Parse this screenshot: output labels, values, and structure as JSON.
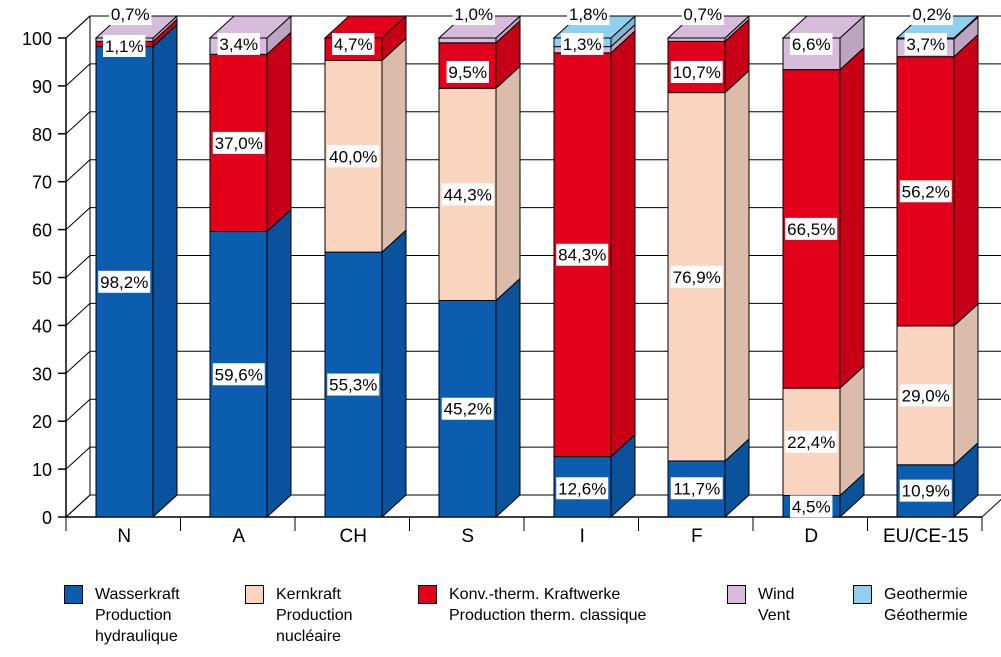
{
  "chart_data": {
    "type": "bar",
    "stacked": true,
    "categories": [
      "N",
      "A",
      "CH",
      "S",
      "I",
      "F",
      "D",
      "EU/CE-15"
    ],
    "ylim": [
      0,
      100
    ],
    "yticks": [
      0,
      10,
      20,
      30,
      40,
      50,
      60,
      70,
      80,
      90,
      100
    ],
    "series": [
      {
        "key": "hydro",
        "name": "Wasserkraft / Production hydraulique",
        "color": "#0b5db0",
        "values": [
          98.2,
          59.6,
          55.3,
          45.2,
          12.6,
          11.7,
          4.5,
          10.9
        ],
        "labels": [
          "98,2%",
          "59,6%",
          "55,3%",
          "45,2%",
          "12,6%",
          "11,7%",
          "4,5%",
          "10,9%"
        ]
      },
      {
        "key": "nuclear",
        "name": "Kernkraft / Production nucléaire",
        "color": "#f9d5c0",
        "values": [
          0,
          0,
          40.0,
          44.3,
          0,
          76.9,
          22.4,
          29.0
        ],
        "labels": [
          "",
          "",
          "40,0%",
          "44,3%",
          "",
          "76,9%",
          "22,4%",
          "29,0%"
        ]
      },
      {
        "key": "thermal",
        "name": "Konv.-therm. Kraftwerke / Production therm. classique",
        "color": "#e2001a",
        "values": [
          1.1,
          37.0,
          4.7,
          9.5,
          84.3,
          10.7,
          66.5,
          56.2
        ],
        "labels": [
          "1,1%",
          "37,0%",
          "4,7%",
          "9,5%",
          "84,3%",
          "10,7%",
          "66,5%",
          "56,2%"
        ]
      },
      {
        "key": "wind",
        "name": "Wind / Vent",
        "color": "#d7bbdb",
        "values": [
          0.7,
          3.4,
          0,
          1.0,
          1.3,
          0.7,
          6.6,
          3.7
        ],
        "labels": [
          "0,7%",
          "3,4%",
          "",
          "1,0%",
          "1,3%",
          "0,7%",
          "6,6%",
          "3,7%"
        ]
      },
      {
        "key": "geo",
        "name": "Geothermie / Géothermie",
        "color": "#8fd0f0",
        "values": [
          0,
          0,
          0,
          0,
          1.8,
          0,
          0,
          0.2
        ],
        "labels": [
          "",
          "",
          "",
          "",
          "1,8%",
          "",
          "",
          "0,2%"
        ]
      }
    ]
  },
  "legend": [
    {
      "color": "#0b5db0",
      "line1": "Wasserkraft",
      "line2": "Production",
      "line3": "hydraulique"
    },
    {
      "color": "#f9d5c0",
      "line1": "Kernkraft",
      "line2": "Production",
      "line3": "nucléaire"
    },
    {
      "color": "#e2001a",
      "line1": "Konv.-therm. Kraftwerke",
      "line2": "Production therm. classique",
      "line3": ""
    },
    {
      "color": "#d7bbdb",
      "line1": "Wind",
      "line2": "Vent",
      "line3": ""
    },
    {
      "color": "#8fd0f0",
      "line1": "Geothermie",
      "line2": "Géothermie",
      "line3": ""
    }
  ]
}
